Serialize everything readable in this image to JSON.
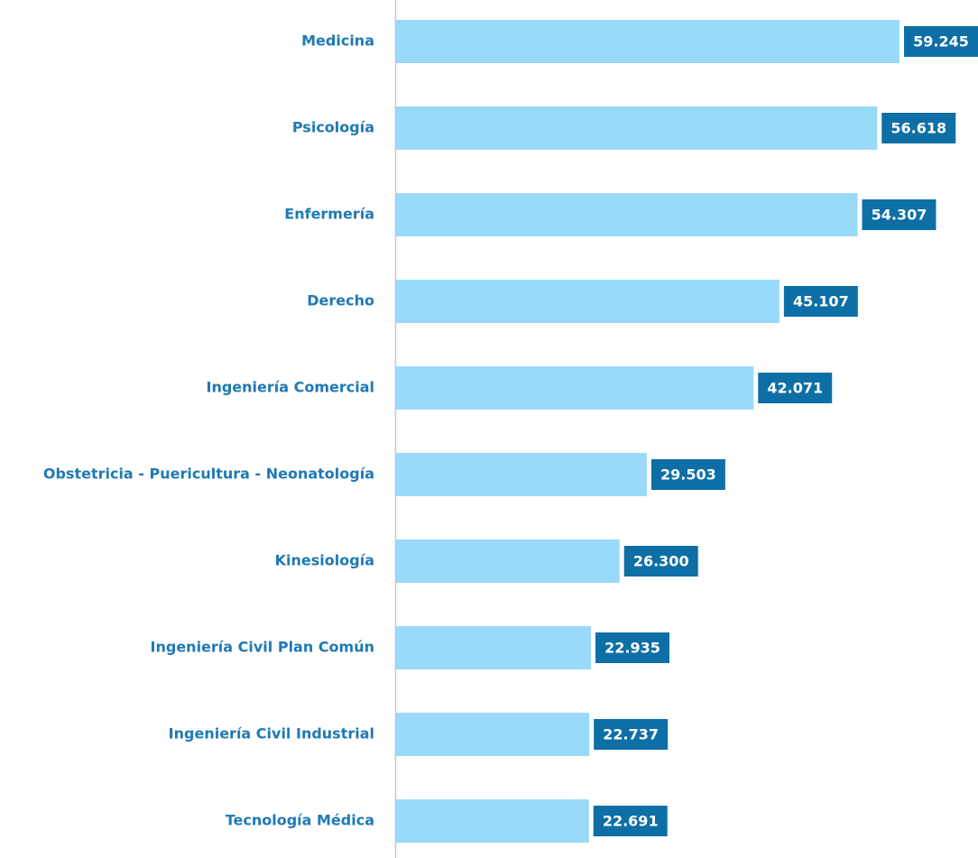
{
  "chart_data": {
    "type": "barh",
    "categories": [
      "Medicina",
      "Psicología",
      "Enfermería",
      "Derecho",
      "Ingeniería Comercial",
      "Obstetricia - Puericultura - Neonatología",
      "Kinesiología",
      "Ingeniería Civil Plan Común",
      "Ingeniería Civil Industrial",
      "Tecnología Médica"
    ],
    "values": [
      59245,
      56618,
      54307,
      45107,
      42071,
      29503,
      26300,
      22935,
      22737,
      22691
    ],
    "value_labels": [
      "59.245",
      "56.618",
      "54.307",
      "45.107",
      "42.071",
      "29.503",
      "26.300",
      "22.935",
      "22.737",
      "22.691"
    ],
    "color": "#99d9f9",
    "label_color": "#0e6fa6"
  }
}
